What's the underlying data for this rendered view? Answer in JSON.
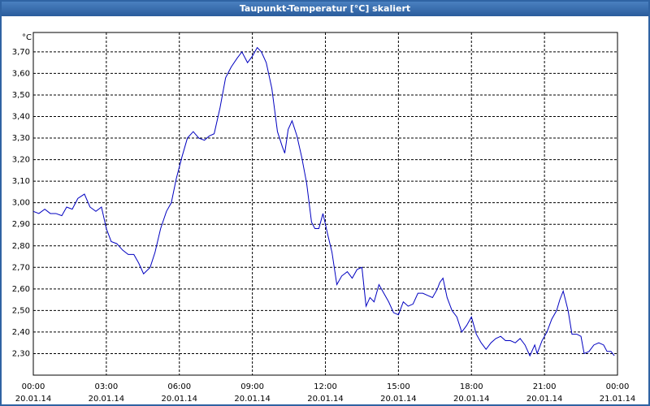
{
  "chart_data": {
    "type": "line",
    "title": "Taupunkt-Temperatur [°C] skaliert",
    "y_unit": "°C",
    "xlim": [
      0,
      24
    ],
    "ylim": [
      2.2,
      3.79
    ],
    "xticks": [
      {
        "value": 0,
        "label": "00:00",
        "date": "20.01.14"
      },
      {
        "value": 3,
        "label": "03:00",
        "date": "20.01.14"
      },
      {
        "value": 6,
        "label": "06:00",
        "date": "20.01.14"
      },
      {
        "value": 9,
        "label": "09:00",
        "date": "20.01.14"
      },
      {
        "value": 12,
        "label": "12:00",
        "date": "20.01.14"
      },
      {
        "value": 15,
        "label": "15:00",
        "date": "20.01.14"
      },
      {
        "value": 18,
        "label": "18:00",
        "date": "20.01.14"
      },
      {
        "value": 21,
        "label": "21:00",
        "date": "20.01.14"
      },
      {
        "value": 24,
        "label": "00:00",
        "date": "21.01.14"
      }
    ],
    "yticks": [
      {
        "value": 2.3,
        "label": "2,30"
      },
      {
        "value": 2.4,
        "label": "2,40"
      },
      {
        "value": 2.5,
        "label": "2,50"
      },
      {
        "value": 2.6,
        "label": "2,60"
      },
      {
        "value": 2.7,
        "label": "2,70"
      },
      {
        "value": 2.8,
        "label": "2,80"
      },
      {
        "value": 2.9,
        "label": "2,90"
      },
      {
        "value": 3.0,
        "label": "3,00"
      },
      {
        "value": 3.1,
        "label": "3,10"
      },
      {
        "value": 3.2,
        "label": "3,20"
      },
      {
        "value": 3.3,
        "label": "3,30"
      },
      {
        "value": 3.4,
        "label": "3,40"
      },
      {
        "value": 3.5,
        "label": "3,50"
      },
      {
        "value": 3.6,
        "label": "3,60"
      },
      {
        "value": 3.7,
        "label": "3,70"
      }
    ],
    "grid": true,
    "x": [
      0,
      0.23,
      0.47,
      0.7,
      0.93,
      1.17,
      1.37,
      1.6,
      1.83,
      2.1,
      2.33,
      2.57,
      2.8,
      3.0,
      3.2,
      3.43,
      3.67,
      3.9,
      4.13,
      4.33,
      4.53,
      4.8,
      5.0,
      5.23,
      5.47,
      5.67,
      5.87,
      6.1,
      6.33,
      6.57,
      6.8,
      7.03,
      7.23,
      7.43,
      7.67,
      7.9,
      8.13,
      8.37,
      8.57,
      8.8,
      9.0,
      9.2,
      9.37,
      9.57,
      9.8,
      10.03,
      10.23,
      10.33,
      10.47,
      10.63,
      10.83,
      11.03,
      11.23,
      11.43,
      11.57,
      11.73,
      11.9,
      12.1,
      12.27,
      12.47,
      12.67,
      12.9,
      13.1,
      13.3,
      13.5,
      13.67,
      13.83,
      14.0,
      14.2,
      14.4,
      14.6,
      14.8,
      15.0,
      15.2,
      15.4,
      15.6,
      15.8,
      16.0,
      16.2,
      16.4,
      16.6,
      16.7,
      16.83,
      17.0,
      17.2,
      17.4,
      17.6,
      17.8,
      18.0,
      18.2,
      18.4,
      18.6,
      18.8,
      19.0,
      19.2,
      19.4,
      19.6,
      19.8,
      20.0,
      20.2,
      20.4,
      20.6,
      20.7,
      20.9,
      21.1,
      21.3,
      21.5,
      21.63,
      21.77,
      21.97,
      22.13,
      22.33,
      22.5,
      22.63,
      22.83,
      23.03,
      23.23,
      23.43,
      23.57,
      23.73,
      23.87
    ],
    "series": [
      {
        "name": "Taupunkt-Temperatur",
        "color": "#0000c0",
        "values": [
          2.96,
          2.95,
          2.97,
          2.95,
          2.95,
          2.94,
          2.98,
          2.97,
          3.02,
          3.04,
          2.98,
          2.96,
          2.98,
          2.88,
          2.82,
          2.81,
          2.78,
          2.76,
          2.76,
          2.72,
          2.67,
          2.7,
          2.77,
          2.88,
          2.96,
          3.0,
          3.11,
          3.21,
          3.3,
          3.33,
          3.3,
          3.29,
          3.31,
          3.32,
          3.44,
          3.58,
          3.63,
          3.67,
          3.7,
          3.65,
          3.68,
          3.72,
          3.7,
          3.65,
          3.53,
          3.33,
          3.26,
          3.23,
          3.34,
          3.38,
          3.31,
          3.21,
          3.09,
          2.91,
          2.88,
          2.88,
          2.95,
          2.85,
          2.77,
          2.62,
          2.66,
          2.68,
          2.65,
          2.69,
          2.7,
          2.52,
          2.56,
          2.54,
          2.62,
          2.58,
          2.54,
          2.49,
          2.48,
          2.54,
          2.52,
          2.53,
          2.58,
          2.58,
          2.57,
          2.56,
          2.6,
          2.63,
          2.65,
          2.56,
          2.5,
          2.47,
          2.4,
          2.43,
          2.47,
          2.39,
          2.35,
          2.32,
          2.35,
          2.37,
          2.38,
          2.36,
          2.36,
          2.35,
          2.37,
          2.34,
          2.29,
          2.34,
          2.3,
          2.36,
          2.4,
          2.46,
          2.5,
          2.55,
          2.59,
          2.5,
          2.39,
          2.39,
          2.38,
          2.3,
          2.31,
          2.34,
          2.35,
          2.34,
          2.31,
          2.31,
          2.29
        ]
      }
    ]
  }
}
